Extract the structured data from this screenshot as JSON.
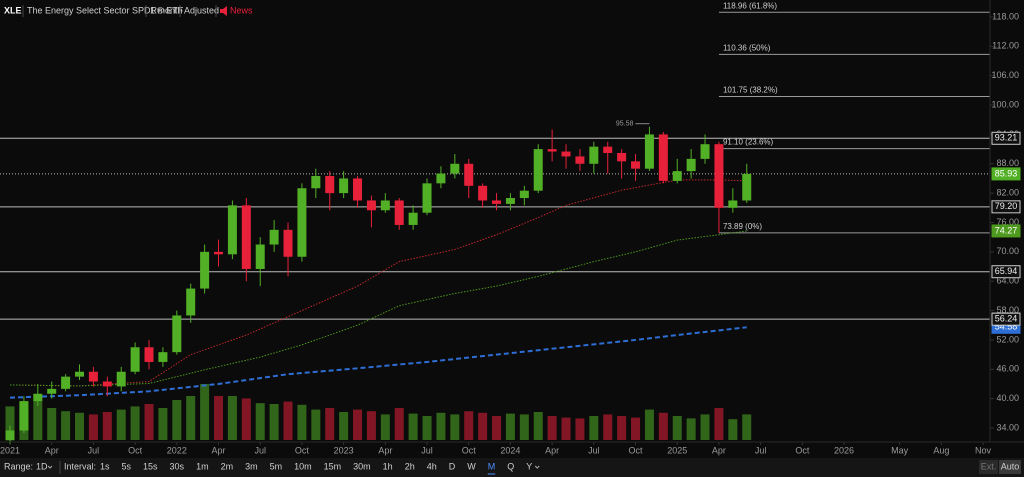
{
  "chart_data": {
    "type": "candlestick",
    "symbol": "XLE",
    "name": "The Energy Select Sector SPDR® ETF",
    "period_label": "1 month",
    "adjusted_label": "Adjusted",
    "news_label": "News",
    "up_color": "#52b026",
    "down_color": "#e8213a",
    "x": [
      0,
      1,
      2,
      3,
      4,
      5,
      6,
      7,
      8,
      9,
      10,
      11,
      12,
      13,
      14,
      15,
      16,
      17,
      18,
      19,
      20,
      21,
      22,
      23,
      24,
      25,
      26,
      27,
      28,
      29,
      30,
      31,
      32,
      33,
      34,
      35,
      36,
      37,
      38,
      39,
      40,
      41,
      42,
      43,
      44,
      45,
      46,
      47,
      48,
      49,
      50,
      51,
      52,
      53
    ],
    "open": [
      31.5,
      33.5,
      39.5,
      41,
      42,
      44.5,
      45.5,
      43.5,
      42.5,
      45.5,
      50.5,
      47.5,
      49.5,
      57,
      62.5,
      70,
      69.5,
      79.5,
      66.5,
      71.5,
      74.5,
      69,
      83,
      85.5,
      82,
      85,
      80.5,
      78.5,
      80.5,
      75.5,
      78,
      84,
      86,
      88,
      83.5,
      80.5,
      79.8,
      81,
      82.5,
      91,
      90.5,
      89.5,
      88,
      91.5,
      90.2,
      88.5,
      87,
      94,
      84.5,
      86.5,
      89,
      92,
      79,
      80.5
    ],
    "high": [
      34.5,
      40.5,
      43,
      43.5,
      45,
      47,
      46.5,
      44.5,
      46.5,
      51.5,
      52,
      50.5,
      58,
      63.5,
      71.5,
      72.5,
      80.5,
      81,
      73,
      76.5,
      76,
      84,
      87,
      86.5,
      86.5,
      85.5,
      81.5,
      82,
      81,
      79.5,
      85,
      87.5,
      90,
      89,
      84,
      82,
      82,
      83.5,
      92,
      95,
      92,
      91,
      92.5,
      92.5,
      91,
      90,
      95.58,
      94.5,
      89,
      91,
      94,
      92.5,
      83,
      88
    ],
    "low": [
      30.8,
      33,
      38.5,
      40,
      41.5,
      43.8,
      42.5,
      40.5,
      41.5,
      45,
      46,
      46.5,
      49,
      55.5,
      61.5,
      67,
      68.5,
      64,
      63,
      70,
      65,
      68,
      81,
      78.5,
      81,
      79,
      75,
      78,
      74.5,
      74.5,
      77.5,
      83,
      85,
      81,
      79,
      78.5,
      78.5,
      79.5,
      82,
      88.5,
      87,
      86.5,
      86,
      86,
      85,
      84.5,
      86.5,
      84,
      84,
      85,
      88,
      73.89,
      78,
      80
    ],
    "close": [
      33.5,
      39.5,
      41,
      42,
      44.5,
      45.5,
      43.5,
      42.5,
      45.5,
      50.5,
      47.5,
      49.5,
      57,
      62.5,
      70,
      69.5,
      79.5,
      66.5,
      71.5,
      74.5,
      69,
      83,
      85.5,
      82,
      85,
      80.5,
      78.5,
      80.5,
      75.5,
      78,
      84,
      86,
      88,
      83.5,
      80.5,
      79.8,
      81,
      82.5,
      91,
      90.5,
      89.5,
      88,
      91.5,
      90.2,
      88.5,
      87,
      94,
      84.5,
      86.5,
      89,
      92,
      79,
      80.5,
      85.93
    ],
    "volume": [
      42,
      45,
      50,
      40,
      36,
      34,
      32,
      35,
      38,
      42,
      45,
      40,
      50,
      55,
      70,
      55,
      55,
      52,
      46,
      45,
      48,
      44,
      38,
      40,
      35,
      38,
      36,
      32,
      40,
      33,
      30,
      34,
      32,
      36,
      34,
      30,
      33,
      32,
      35,
      30,
      28,
      27,
      30,
      32,
      30,
      28,
      38,
      34,
      30,
      27,
      32,
      40,
      26,
      32
    ],
    "volume_ylim": [
      0,
      100
    ],
    "xlim": [
      -0.72,
      70.5
    ],
    "ylim": [
      31.55,
      121.47
    ],
    "xticks": [
      {
        "value": 0,
        "label": "2021"
      },
      {
        "value": 3,
        "label": "Apr"
      },
      {
        "value": 6,
        "label": "Jul"
      },
      {
        "value": 9,
        "label": "Oct"
      },
      {
        "value": 12,
        "label": "2022"
      },
      {
        "value": 15,
        "label": "Apr"
      },
      {
        "value": 18,
        "label": "Jul"
      },
      {
        "value": 21,
        "label": "Oct"
      },
      {
        "value": 24,
        "label": "2023"
      },
      {
        "value": 27,
        "label": "Apr"
      },
      {
        "value": 30,
        "label": "Jul"
      },
      {
        "value": 33,
        "label": "Oct"
      },
      {
        "value": 36,
        "label": "2024"
      },
      {
        "value": 39,
        "label": "Apr"
      },
      {
        "value": 42,
        "label": "Jul"
      },
      {
        "value": 45,
        "label": "Oct"
      },
      {
        "value": 48,
        "label": "2025"
      },
      {
        "value": 51,
        "label": "Apr"
      },
      {
        "value": 54,
        "label": "Jul"
      },
      {
        "value": 57,
        "label": "Oct"
      },
      {
        "value": 60,
        "label": "2026"
      },
      {
        "value": 64,
        "label": "May"
      },
      {
        "value": 67,
        "label": "Aug"
      },
      {
        "value": 70,
        "label": "Nov"
      }
    ],
    "yticks": [
      {
        "value": 118,
        "label": "118.00"
      },
      {
        "value": 112,
        "label": "112.00"
      },
      {
        "value": 106,
        "label": "106.00"
      },
      {
        "value": 100,
        "label": "100.00"
      },
      {
        "value": 94,
        "label": "94.00"
      },
      {
        "value": 88,
        "label": "88.00"
      },
      {
        "value": 82,
        "label": "82.00"
      },
      {
        "value": 76,
        "label": "76.00"
      },
      {
        "value": 70,
        "label": "70.00"
      },
      {
        "value": 64,
        "label": "64.00"
      },
      {
        "value": 58,
        "label": "58.00"
      },
      {
        "value": 52,
        "label": "52.00"
      },
      {
        "value": 46,
        "label": "46.00"
      },
      {
        "value": 40,
        "label": "40.00"
      },
      {
        "value": 34,
        "label": "34.00"
      }
    ],
    "moving_averages": [
      {
        "color": "#c0282c",
        "x": [
          0,
          5,
          10,
          13,
          17,
          21,
          25,
          28,
          32,
          35,
          38,
          40,
          44,
          48,
          51,
          53
        ],
        "values": [
          42.8,
          42.6,
          43.5,
          49,
          53,
          58,
          63,
          68,
          70.5,
          73.5,
          77,
          79.5,
          82.6,
          84.7,
          84.7,
          84.5
        ]
      },
      {
        "color": "#4e9a1e",
        "x": [
          0,
          5,
          10,
          14,
          18,
          21,
          25,
          28,
          32,
          35,
          38,
          42,
          45,
          48,
          51,
          53
        ],
        "values": [
          42.8,
          42.6,
          43.1,
          45.9,
          48.5,
          51,
          55,
          59,
          61.5,
          63,
          65,
          68,
          70,
          72.4,
          73.5,
          74.27
        ]
      },
      {
        "color": "#2e6fd6",
        "x": [
          0,
          5,
          10,
          15,
          20,
          25,
          30,
          35,
          40,
          45,
          48,
          53
        ],
        "values": [
          40.2,
          40.7,
          41.5,
          43,
          45,
          46.2,
          47.5,
          49,
          50.5,
          52,
          53,
          54.58
        ]
      }
    ],
    "last_price": 85.93,
    "levels": [
      {
        "value": 93.21,
        "label": "93.21"
      },
      {
        "value": 79.2,
        "label": "79.20"
      },
      {
        "value": 65.94,
        "label": "65.94"
      },
      {
        "value": 56.24,
        "label": "56.24"
      }
    ],
    "fib_levels": [
      {
        "value": 118.96,
        "label": "118.96 (61.8%)"
      },
      {
        "value": 110.36,
        "label": "110.36 (50%)"
      },
      {
        "value": 101.75,
        "label": "101.75 (38.2%)"
      },
      {
        "value": 91.1,
        "label": "91.10 (23.6%)"
      },
      {
        "value": 73.89,
        "label": "73.89 (0%)"
      }
    ],
    "fib_start_x": 51,
    "high_annotation": {
      "x": 46,
      "value": 95.58
    }
  },
  "toolbar": {
    "range_label": "Range:",
    "range_value": "1D",
    "interval_label": "Interval:",
    "intervals": [
      "1s",
      "5s",
      "15s",
      "30s",
      "1m",
      "2m",
      "3m",
      "5m",
      "10m",
      "15m",
      "30m",
      "1h",
      "2h",
      "4h",
      "D",
      "W",
      "M",
      "Q",
      "Y"
    ],
    "selected_interval": 16,
    "ext_label": "Ext.",
    "auto_label": "Auto"
  }
}
